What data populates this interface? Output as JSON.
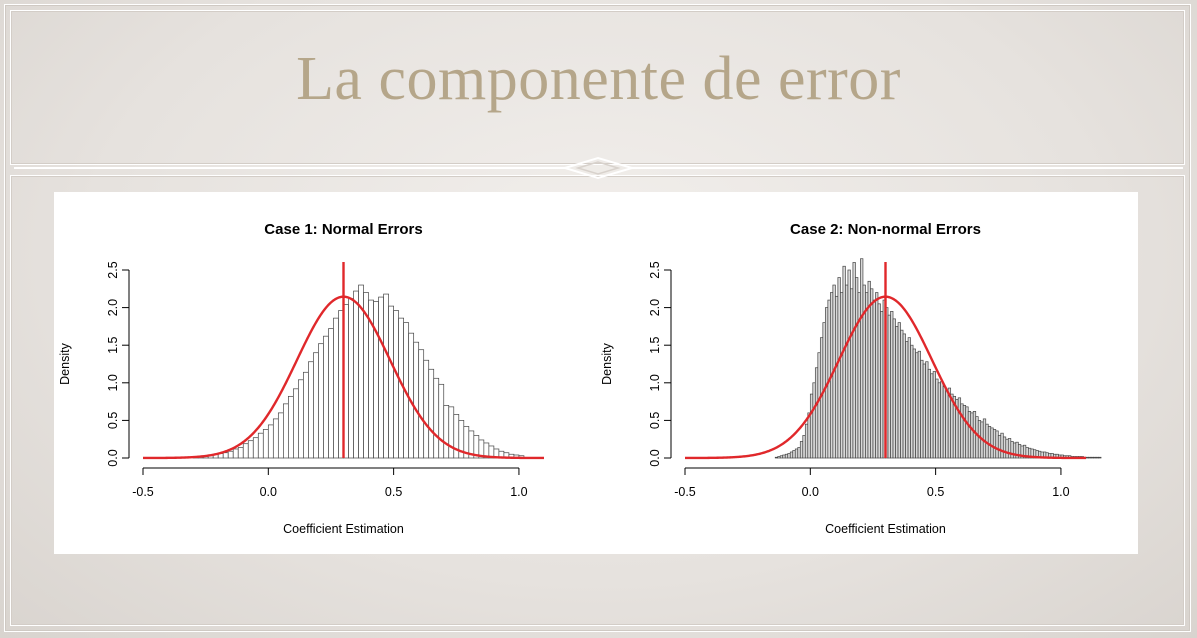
{
  "slide": {
    "title": "La componente de error",
    "colors": {
      "title": "#b5a68a",
      "background": "#e7e3e0"
    }
  },
  "chart_data": [
    {
      "type": "histogram",
      "title": "Case 1: Normal Errors",
      "xlabel": "Coefficient Estimation",
      "ylabel": "Density",
      "xlim": [
        -0.5,
        1.1
      ],
      "ylim": [
        0,
        2.5
      ],
      "xticks": [
        "-0.5",
        "0.0",
        "0.5",
        "1.0"
      ],
      "yticks": [
        "0.0",
        "0.5",
        "1.0",
        "1.5",
        "2.0",
        "2.5"
      ],
      "bins": {
        "start": -0.3,
        "width": 0.02
      },
      "densities": [
        0.01,
        0.02,
        0.03,
        0.04,
        0.05,
        0.06,
        0.07,
        0.09,
        0.12,
        0.14,
        0.19,
        0.23,
        0.27,
        0.33,
        0.38,
        0.44,
        0.52,
        0.6,
        0.72,
        0.82,
        0.92,
        1.04,
        1.14,
        1.28,
        1.4,
        1.52,
        1.62,
        1.72,
        1.86,
        1.96,
        2.04,
        2.12,
        2.22,
        2.3,
        2.2,
        2.1,
        2.08,
        2.14,
        2.18,
        2.02,
        1.96,
        1.86,
        1.8,
        1.66,
        1.54,
        1.44,
        1.3,
        1.18,
        1.06,
        0.98,
        0.7,
        0.68,
        0.58,
        0.5,
        0.42,
        0.36,
        0.3,
        0.24,
        0.2,
        0.16,
        0.12,
        0.09,
        0.07,
        0.05,
        0.04,
        0.03
      ],
      "normal_curve": {
        "mean": 0.3,
        "sd": 0.186,
        "color": "#e0282b"
      },
      "vline": {
        "x": 0.3,
        "color": "#e0282b"
      }
    },
    {
      "type": "histogram",
      "title": "Case 2: Non-normal Errors",
      "xlabel": "Coefficient Estimation",
      "ylabel": "Density",
      "xlim": [
        -0.5,
        1.1
      ],
      "ylim": [
        0,
        2.5
      ],
      "xticks": [
        "-0.5",
        "0.0",
        "0.5",
        "1.0"
      ],
      "yticks": [
        "0.0",
        "0.5",
        "1.0",
        "1.5",
        "2.0",
        "2.5"
      ],
      "bins": {
        "start": -0.14,
        "width": 0.01
      },
      "densities": [
        0.01,
        0.02,
        0.03,
        0.04,
        0.05,
        0.06,
        0.08,
        0.1,
        0.12,
        0.14,
        0.22,
        0.3,
        0.45,
        0.6,
        0.85,
        1.0,
        1.2,
        1.4,
        1.6,
        1.8,
        2.0,
        2.1,
        2.2,
        2.3,
        2.15,
        2.4,
        2.2,
        2.55,
        2.3,
        2.5,
        2.25,
        2.6,
        2.4,
        2.2,
        2.65,
        2.3,
        2.2,
        2.35,
        2.25,
        2.1,
        2.2,
        2.05,
        1.95,
        2.1,
        2.0,
        1.9,
        1.95,
        1.85,
        1.75,
        1.8,
        1.7,
        1.65,
        1.55,
        1.6,
        1.5,
        1.45,
        1.4,
        1.42,
        1.3,
        1.25,
        1.28,
        1.18,
        1.12,
        1.15,
        1.05,
        1.0,
        1.02,
        0.95,
        0.9,
        0.93,
        0.85,
        0.82,
        0.78,
        0.8,
        0.72,
        0.7,
        0.68,
        0.62,
        0.6,
        0.62,
        0.55,
        0.5,
        0.48,
        0.52,
        0.45,
        0.42,
        0.4,
        0.38,
        0.36,
        0.3,
        0.33,
        0.28,
        0.25,
        0.26,
        0.22,
        0.2,
        0.21,
        0.18,
        0.16,
        0.17,
        0.14,
        0.13,
        0.12,
        0.11,
        0.1,
        0.09,
        0.08,
        0.08,
        0.07,
        0.06,
        0.06,
        0.05,
        0.05,
        0.04,
        0.04,
        0.03,
        0.03,
        0.03,
        0.02,
        0.02,
        0.02,
        0.02,
        0.02,
        0.01,
        0.01,
        0.01,
        0.01,
        0.01,
        0.01,
        0.01
      ],
      "normal_curve": {
        "mean": 0.3,
        "sd": 0.186,
        "color": "#e0282b"
      },
      "vline": {
        "x": 0.3,
        "color": "#e0282b"
      }
    }
  ]
}
